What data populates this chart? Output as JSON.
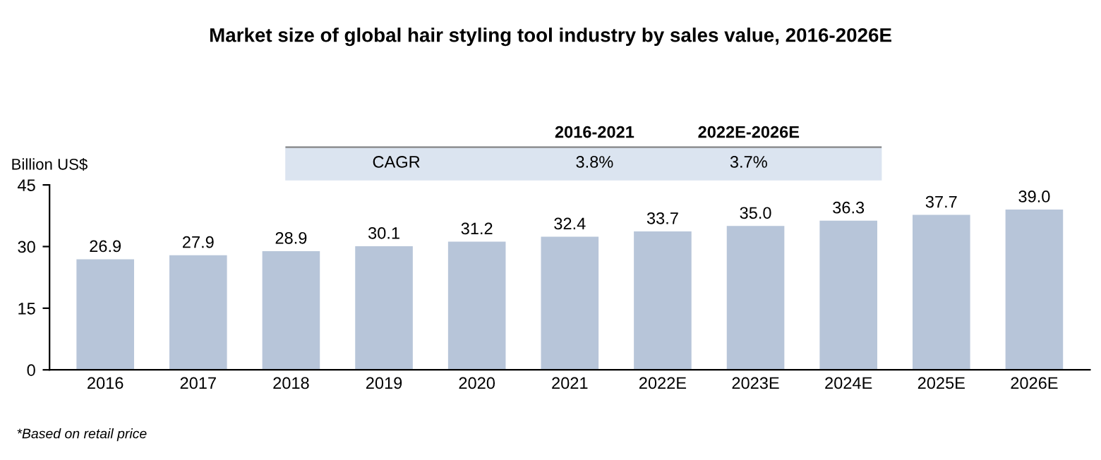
{
  "chart_data": {
    "type": "bar",
    "title": "Market size of global hair styling tool industry by sales value, 2016-2026E",
    "ylabel": "Billion US$",
    "categories": [
      "2016",
      "2017",
      "2018",
      "2019",
      "2020",
      "2021",
      "2022E",
      "2023E",
      "2024E",
      "2025E",
      "2026E"
    ],
    "values": [
      26.9,
      27.9,
      28.9,
      30.1,
      31.2,
      32.4,
      33.7,
      35.0,
      36.3,
      37.7,
      39.0
    ],
    "value_labels": [
      "26.9",
      "27.9",
      "28.9",
      "30.1",
      "31.2",
      "32.4",
      "33.7",
      "35.0",
      "36.3",
      "37.7",
      "39.0"
    ],
    "color": "#b7c5d9",
    "ylim": [
      0,
      45
    ],
    "yticks": [
      0,
      15,
      30,
      45
    ],
    "grid": false,
    "legend": false,
    "annotations": [
      "2016-2021",
      "2022E-2026E",
      "CAGR",
      "3.8%",
      "3.7%",
      "*Based on retail price"
    ]
  }
}
